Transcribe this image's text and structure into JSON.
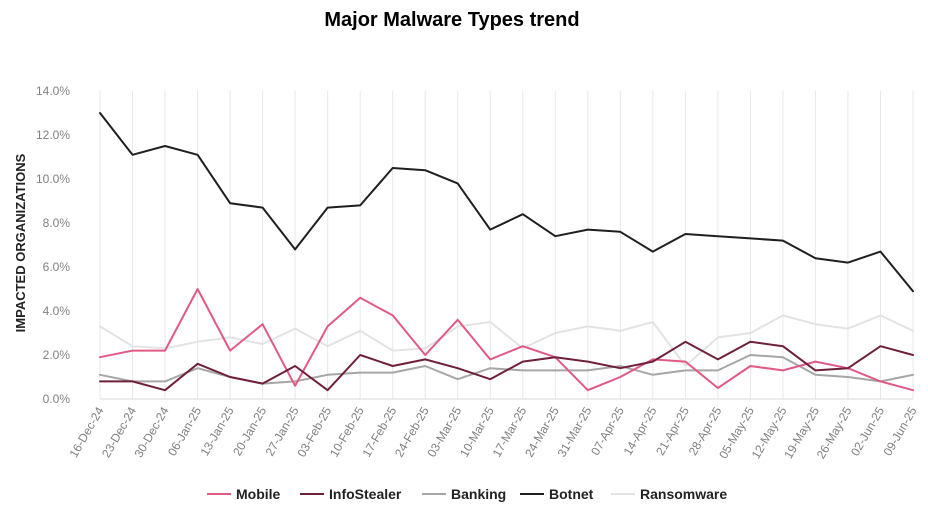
{
  "chart_data": {
    "type": "line",
    "title": "Major Malware Types trend",
    "ylabel": "IMPACTED ORGANIZATIONS",
    "xlabel": "",
    "ylim": [
      0,
      14
    ],
    "y_ticks": [
      "0.0%",
      "2.0%",
      "4.0%",
      "6.0%",
      "8.0%",
      "10.0%",
      "12.0%",
      "14.0%"
    ],
    "grid": "vertical",
    "legend_position": "bottom",
    "categories": [
      "16-Dec-24",
      "23-Dec-24",
      "30-Dec-24",
      "06-Jan-25",
      "13-Jan-25",
      "20-Jan-25",
      "27-Jan-25",
      "03-Feb-25",
      "10-Feb-25",
      "17-Feb-25",
      "24-Feb-25",
      "03-Mar-25",
      "10-Mar-25",
      "17-Mar-25",
      "24-Mar-25",
      "31-Mar-25",
      "07-Apr-25",
      "14-Apr-25",
      "21-Apr-25",
      "28-Apr-25",
      "05-May-25",
      "12-May-25",
      "19-May-25",
      "26-May-25",
      "02-Jun-25",
      "09-Jun-25"
    ],
    "series": [
      {
        "name": "Mobile",
        "color": "#e05a84",
        "values": [
          1.9,
          2.2,
          2.2,
          5.0,
          2.2,
          3.4,
          0.6,
          3.3,
          4.6,
          3.8,
          2.0,
          3.6,
          1.8,
          2.4,
          1.9,
          0.4,
          1.0,
          1.8,
          1.7,
          0.5,
          1.5,
          1.3,
          1.7,
          1.4,
          0.8,
          0.4
        ]
      },
      {
        "name": "InfoStealer",
        "color": "#6e1f3c",
        "values": [
          0.8,
          0.8,
          0.4,
          1.6,
          1.0,
          0.7,
          1.5,
          0.4,
          2.0,
          1.5,
          1.8,
          1.4,
          0.9,
          1.7,
          1.9,
          1.7,
          1.4,
          1.7,
          2.6,
          1.8,
          2.6,
          2.4,
          1.3,
          1.4,
          2.4,
          2.0
        ]
      },
      {
        "name": "Banking",
        "color": "#a6a6a6",
        "values": [
          1.1,
          0.8,
          0.8,
          1.4,
          1.0,
          0.7,
          0.8,
          1.1,
          1.2,
          1.2,
          1.5,
          0.9,
          1.4,
          1.3,
          1.3,
          1.3,
          1.5,
          1.1,
          1.3,
          1.3,
          2.0,
          1.9,
          1.1,
          1.0,
          0.8,
          1.1
        ]
      },
      {
        "name": "Botnet",
        "color": "#1f1f1f",
        "values": [
          13.0,
          11.1,
          11.5,
          11.1,
          8.9,
          8.7,
          6.8,
          8.7,
          8.8,
          10.5,
          10.4,
          9.8,
          7.7,
          8.4,
          7.4,
          7.7,
          7.6,
          6.7,
          7.5,
          7.4,
          7.3,
          7.2,
          6.4,
          6.2,
          6.7,
          4.9
        ]
      },
      {
        "name": "Ransomware",
        "color": "#e3e3e3",
        "values": [
          3.3,
          2.4,
          2.3,
          2.6,
          2.8,
          2.5,
          3.2,
          2.4,
          3.1,
          2.2,
          2.3,
          3.3,
          3.5,
          2.3,
          3.0,
          3.3,
          3.1,
          3.5,
          1.5,
          2.8,
          3.0,
          3.8,
          3.4,
          3.2,
          3.8,
          3.1
        ]
      }
    ]
  }
}
